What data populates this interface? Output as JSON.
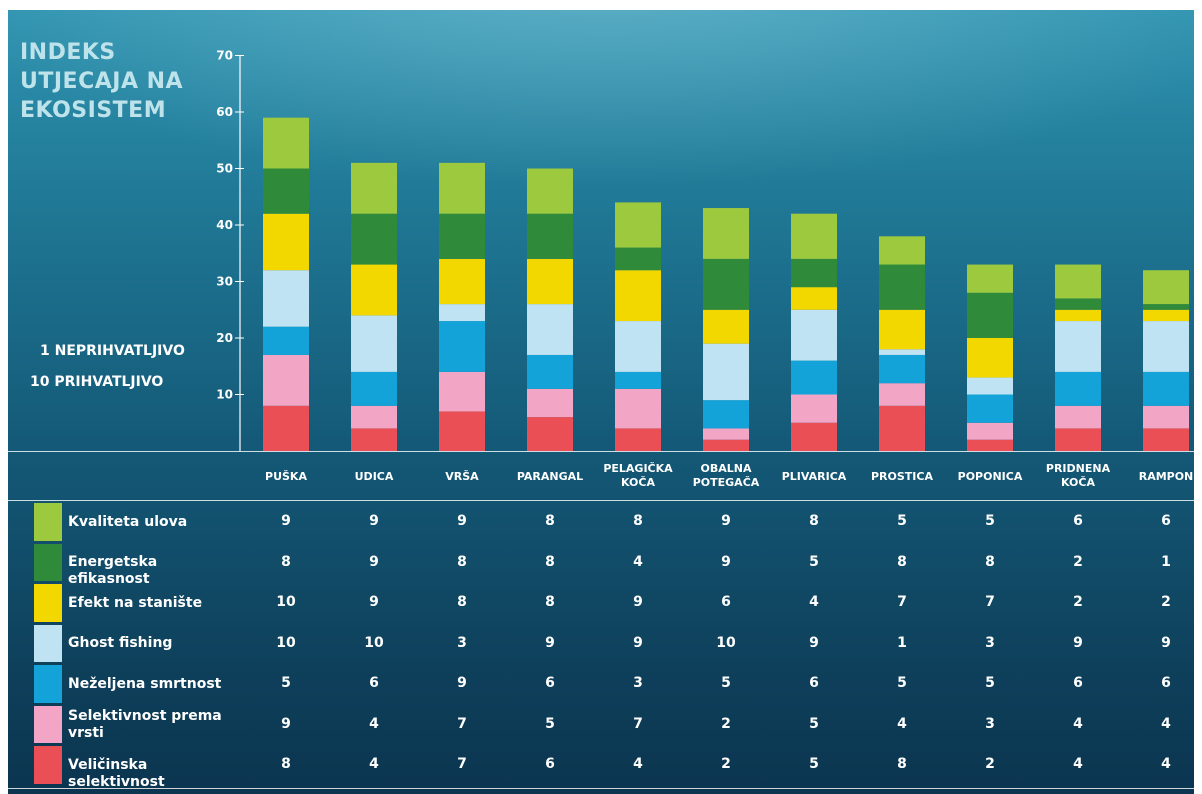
{
  "title_lines": [
    "INDEKS",
    "UTJECAJA NA",
    "EKOSISTEM"
  ],
  "scale_note": [
    "1  NEPRIHVATLJIVO",
    "10  PRIHVATLJIVO"
  ],
  "colors": {
    "Kvaliteta ulova": "#9cc93e",
    "Energetska efikasnost": "#2f8a3a",
    "Efekt na stanište": "#f3d800",
    "Ghost fishing": "#bfe3f2",
    "Neželjena smrtnost": "#13a3d8",
    "Selektivnost prema vrsti": "#f3a5c6",
    "Veličinska selektivnost": "#ea4f55"
  },
  "chart_data": {
    "type": "bar",
    "stacked": true,
    "categories": [
      "PUŠKA",
      "UDICA",
      "VRŠA",
      "PARANGAL",
      "PELAGIČKA KOČA",
      "OBALNA POTEGAČA",
      "PLIVARICA",
      "PROSTICA",
      "POPONICA",
      "PRIDNENA KOČA",
      "RAMPON"
    ],
    "category_lines": [
      [
        "PUŠKA"
      ],
      [
        "UDICA"
      ],
      [
        "VRŠA"
      ],
      [
        "PARANGAL"
      ],
      [
        "PELAGIČKA",
        "KOČA"
      ],
      [
        "OBALNA",
        "POTEGAČA"
      ],
      [
        "PLIVARICA"
      ],
      [
        "PROSTICA"
      ],
      [
        "POPONICA"
      ],
      [
        "PRIDNENA",
        "KOČA"
      ],
      [
        "RAMPON"
      ]
    ],
    "ylim": [
      0,
      70
    ],
    "yticks": [
      10,
      20,
      30,
      40,
      50,
      60,
      70
    ],
    "series": [
      {
        "name": "Kvaliteta ulova",
        "values": [
          9,
          9,
          9,
          8,
          8,
          9,
          8,
          5,
          5,
          6,
          6
        ],
        "label_lines": [
          "Kvaliteta ulova"
        ]
      },
      {
        "name": "Energetska efikasnost",
        "values": [
          8,
          9,
          8,
          8,
          4,
          9,
          5,
          8,
          8,
          2,
          1
        ],
        "label_lines": [
          "Energetska efikasnost"
        ]
      },
      {
        "name": "Efekt na stanište",
        "values": [
          10,
          9,
          8,
          8,
          9,
          6,
          4,
          7,
          7,
          2,
          2
        ],
        "label_lines": [
          "Efekt na stanište"
        ]
      },
      {
        "name": "Ghost fishing",
        "values": [
          10,
          10,
          3,
          9,
          9,
          10,
          9,
          1,
          3,
          9,
          9
        ],
        "label_lines": [
          "Ghost fishing"
        ]
      },
      {
        "name": "Neželjena smrtnost",
        "values": [
          5,
          6,
          9,
          6,
          3,
          5,
          6,
          5,
          5,
          6,
          6
        ],
        "label_lines": [
          "Neželjena smrtnost"
        ]
      },
      {
        "name": "Selektivnost prema vrsti",
        "values": [
          9,
          4,
          7,
          5,
          7,
          2,
          5,
          4,
          3,
          4,
          4
        ],
        "label_lines": [
          "Selektivnost prema",
          "vrsti"
        ]
      },
      {
        "name": "Veličinska selektivnost",
        "values": [
          8,
          4,
          7,
          6,
          4,
          2,
          5,
          8,
          2,
          4,
          4
        ],
        "label_lines": [
          "Veličinska selektivnost"
        ]
      }
    ],
    "bar_totals": [
      59,
      51,
      51,
      50,
      44,
      43,
      42,
      38,
      33,
      33,
      32
    ]
  }
}
